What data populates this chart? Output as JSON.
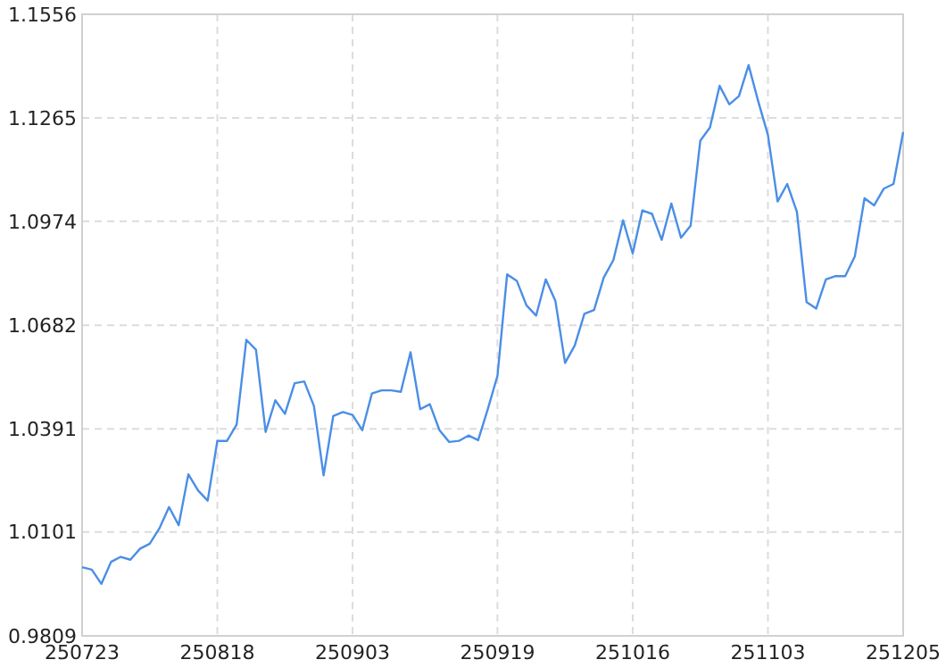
{
  "chart_data": {
    "type": "line",
    "categories": [
      "250723",
      null,
      null,
      null,
      null,
      null,
      null,
      null,
      null,
      null,
      null,
      null,
      null,
      null,
      "250818",
      null,
      null,
      null,
      null,
      null,
      null,
      null,
      null,
      null,
      null,
      null,
      null,
      null,
      "250903",
      null,
      null,
      null,
      null,
      null,
      null,
      null,
      null,
      null,
      null,
      null,
      null,
      null,
      null,
      "250919",
      null,
      null,
      null,
      null,
      null,
      null,
      null,
      null,
      null,
      null,
      null,
      null,
      null,
      "251016",
      null,
      null,
      null,
      null,
      null,
      null,
      null,
      null,
      null,
      null,
      null,
      null,
      null,
      "251103",
      null,
      null,
      null,
      null,
      null,
      null,
      null,
      null,
      null,
      null,
      null,
      null,
      null,
      "251205"
    ],
    "series": [
      {
        "color": "#4a8ee6",
        "values": [
          1.0002,
          0.9995,
          0.9955,
          1.0017,
          1.0031,
          1.0023,
          1.0054,
          1.0068,
          1.0111,
          1.0171,
          1.012,
          1.0263,
          1.0218,
          1.0189,
          1.0357,
          1.0357,
          1.0403,
          1.0641,
          1.0613,
          1.0382,
          1.0471,
          1.0433,
          1.0519,
          1.0524,
          1.0455,
          1.026,
          1.0427,
          1.0438,
          1.043,
          1.0387,
          1.049,
          1.0499,
          1.0499,
          1.0495,
          1.0606,
          1.0446,
          1.046,
          1.0387,
          1.0354,
          1.0357,
          1.0372,
          1.0359,
          1.0446,
          1.054,
          1.0825,
          1.0807,
          1.0738,
          1.0709,
          1.0811,
          1.075,
          1.0576,
          1.0625,
          1.0714,
          1.0725,
          1.0816,
          1.0865,
          1.0977,
          1.0884,
          1.1005,
          1.0995,
          1.0922,
          1.1024,
          1.0928,
          1.0962,
          1.1201,
          1.1238,
          1.1355,
          1.1303,
          1.1326,
          1.1413,
          1.1311,
          1.1217,
          1.103,
          1.1079,
          1.1001,
          1.0747,
          1.0729,
          1.0811,
          1.082,
          1.082,
          1.0876,
          1.1039,
          1.1019,
          1.1066,
          1.1079,
          1.1225
        ]
      }
    ],
    "ylim": [
      0.9809,
      1.1556
    ],
    "yticks": [
      0.9809,
      1.0101,
      1.0391,
      1.0682,
      1.0974,
      1.1265,
      1.1556
    ],
    "grid": true,
    "marker": "none",
    "line_style": "solid"
  }
}
